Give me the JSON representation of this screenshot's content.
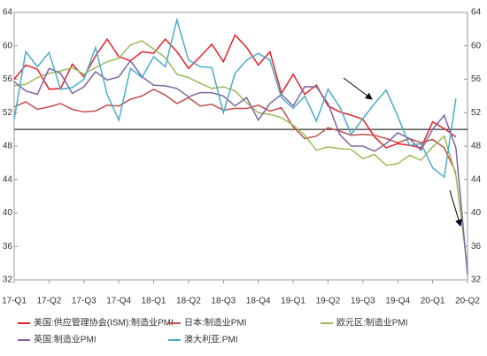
{
  "chart_data": {
    "type": "line",
    "categories": [
      "17-Q1",
      null,
      null,
      "17-Q2",
      null,
      null,
      "17-Q3",
      null,
      null,
      "17-Q4",
      null,
      null,
      "18-Q1",
      null,
      null,
      "18-Q2",
      null,
      null,
      "18-Q3",
      null,
      null,
      "18-Q4",
      null,
      null,
      "19-Q1",
      null,
      null,
      "19-Q2",
      null,
      null,
      "19-Q3",
      null,
      null,
      "19-Q4",
      null,
      null,
      "20-Q1",
      null,
      null,
      "20-Q2"
    ],
    "series": [
      {
        "name": "美国:供应管理协会(ISM):制造业PMI",
        "color": "#e8202a",
        "values": [
          56.0,
          57.7,
          57.2,
          54.8,
          54.9,
          57.8,
          56.3,
          58.8,
          60.8,
          58.7,
          58.2,
          59.3,
          59.1,
          60.8,
          59.3,
          57.3,
          58.7,
          60.2,
          58.1,
          61.3,
          59.8,
          57.7,
          59.3,
          54.3,
          56.6,
          54.2,
          55.3,
          52.8,
          52.1,
          51.7,
          51.2,
          49.1,
          47.8,
          48.3,
          48.1,
          47.8,
          50.9,
          50.1,
          49.1,
          null
        ]
      },
      {
        "name": "日本:制造业PMI",
        "color": "#c0504d",
        "values": [
          52.7,
          53.3,
          52.4,
          52.7,
          53.1,
          52.4,
          52.1,
          52.2,
          52.9,
          52.8,
          53.6,
          54.0,
          54.8,
          54.1,
          53.1,
          53.8,
          52.8,
          53.0,
          52.3,
          52.5,
          52.5,
          52.9,
          52.2,
          52.6,
          50.3,
          48.9,
          49.2,
          50.2,
          49.8,
          49.3,
          49.4,
          49.3,
          48.9,
          48.4,
          48.9,
          48.4,
          48.8,
          47.8,
          44.8,
          null
        ]
      },
      {
        "name": "欧元区:制造业PMI",
        "color": "#9bbb59",
        "values": [
          55.2,
          55.4,
          56.2,
          56.7,
          57.0,
          57.4,
          56.6,
          57.4,
          58.1,
          58.5,
          60.1,
          60.6,
          59.6,
          58.6,
          56.6,
          56.2,
          55.5,
          54.9,
          55.1,
          54.6,
          53.2,
          52.0,
          51.8,
          51.4,
          50.5,
          49.3,
          47.5,
          47.9,
          47.7,
          47.6,
          46.5,
          47.0,
          45.7,
          45.9,
          46.9,
          46.3,
          47.9,
          49.2,
          44.5,
          33.4
        ]
      },
      {
        "name": "英国:制造业PMI",
        "color": "#8064a2",
        "values": [
          55.7,
          54.6,
          54.2,
          57.3,
          56.7,
          54.3,
          55.1,
          56.9,
          55.9,
          56.3,
          58.2,
          56.3,
          55.3,
          55.2,
          54.9,
          53.9,
          54.4,
          54.4,
          54.0,
          52.8,
          53.8,
          51.1,
          53.1,
          54.2,
          52.8,
          55.1,
          55.1,
          53.1,
          49.4,
          48.0,
          48.0,
          47.4,
          48.3,
          49.6,
          48.9,
          47.5,
          50.0,
          51.7,
          47.8,
          32.6
        ]
      },
      {
        "name": "澳大利亚:PMI",
        "color": "#4bacc6",
        "values": [
          51.2,
          59.3,
          57.5,
          59.2,
          54.8,
          55.0,
          56.0,
          59.8,
          54.2,
          51.1,
          57.3,
          56.2,
          58.7,
          57.5,
          63.1,
          58.3,
          57.5,
          57.4,
          52.0,
          56.7,
          58.3,
          59.1,
          58.3,
          53.8,
          52.5,
          54.0,
          51.0,
          54.8,
          52.7,
          49.4,
          51.3,
          53.1,
          54.7,
          51.6,
          48.1,
          48.3,
          45.4,
          44.3,
          53.7,
          null
        ]
      }
    ],
    "ylim": [
      32,
      64
    ],
    "yticks": [
      32,
      36,
      40,
      44,
      48,
      52,
      56,
      60,
      64
    ],
    "y2lim": [
      32,
      64
    ],
    "y2ticks": [
      32,
      36,
      40,
      44,
      48,
      52,
      56,
      60,
      64
    ],
    "reference_line": 50
  }
}
